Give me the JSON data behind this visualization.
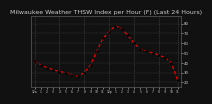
{
  "title": "Milwaukee Weather THSW Index per Hour (F) (Last 24 Hours)",
  "title_fontsize": 4.5,
  "background_color": "#111111",
  "plot_bg_color": "#111111",
  "title_color": "#cccccc",
  "grid_color": "#555555",
  "line_color": "#ff0000",
  "marker_color": "#000000",
  "ylabel_right_values": [
    20,
    30,
    40,
    50,
    60,
    70,
    80
  ],
  "ylabel_right_color": "#cccccc",
  "ylim": [
    15,
    88
  ],
  "hours": [
    0,
    1,
    2,
    3,
    4,
    5,
    6,
    7,
    8,
    9,
    10,
    11,
    12,
    13,
    14,
    15,
    16,
    17,
    18,
    19,
    20,
    21,
    22,
    23
  ],
  "x_tick_labels": [
    "12a",
    "1",
    "2",
    "3",
    "4",
    "5",
    "6",
    "7",
    "8",
    "9",
    "10",
    "11",
    "12p",
    "1",
    "2",
    "3",
    "4",
    "5",
    "6",
    "7",
    "8",
    "9",
    "10",
    "11"
  ],
  "x_tick_color": "#cccccc",
  "values": [
    42,
    38,
    35,
    33,
    31,
    30,
    28,
    26,
    30,
    38,
    52,
    65,
    72,
    78,
    75,
    68,
    60,
    54,
    52,
    50,
    48,
    45,
    40,
    22
  ],
  "vgrid_positions": [
    0,
    4,
    8,
    12,
    16,
    20,
    23
  ],
  "spine_color": "#555555"
}
